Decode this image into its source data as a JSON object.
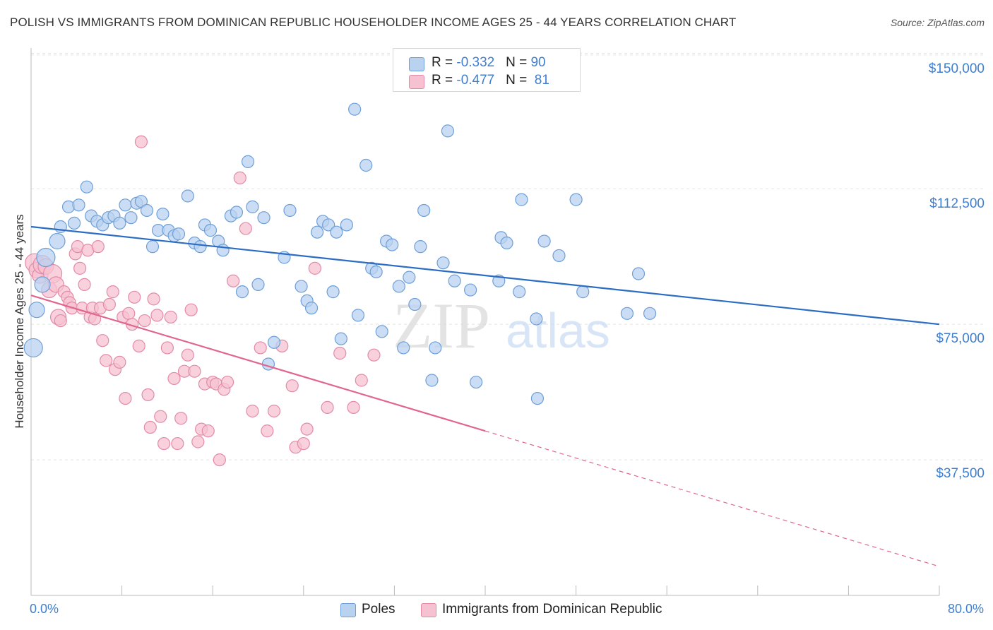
{
  "header": {
    "title": "POLISH VS IMMIGRANTS FROM DOMINICAN REPUBLIC HOUSEHOLDER INCOME AGES 25 - 44 YEARS CORRELATION CHART",
    "source": "Source: ZipAtlas.com"
  },
  "watermark": "ZIPatlas",
  "legend_top": {
    "rows": [
      {
        "r_label": "R = ",
        "r_value": "-0.332",
        "n_label": "N = ",
        "n_value": "90"
      },
      {
        "r_label": "R = ",
        "r_value": "-0.477",
        "n_label": "N = ",
        "n_value": " 81"
      }
    ]
  },
  "legend_bottom": [
    "Poles",
    "Immigrants from Dominican Republic"
  ],
  "colors": {
    "blue_fill": "#b8d2f0",
    "blue_stroke": "#6d9fd8",
    "blue_line": "#2b6cc4",
    "pink_fill": "#f6c2d2",
    "pink_stroke": "#e48aa8",
    "pink_line": "#e0668f",
    "axis_text": "#3f7fd0",
    "grid": "#e4e4e4"
  },
  "chart_data": {
    "type": "scatter",
    "title": "POLISH VS IMMIGRANTS FROM DOMINICAN REPUBLIC HOUSEHOLDER INCOME AGES 25 - 44 YEARS CORRELATION CHART",
    "xlabel": "",
    "ylabel": "Householder Income Ages 25 - 44 years",
    "xlim": [
      0,
      80
    ],
    "ylim": [
      0,
      153000
    ],
    "x_tick_labels": [
      "0.0%",
      "80.0%"
    ],
    "y_ticks": [
      37500,
      75000,
      112500,
      150000
    ],
    "y_tick_labels": [
      "$37,500",
      "$75,000",
      "$112,500",
      "$150,000"
    ],
    "grid": true,
    "series": [
      {
        "name": "Poles",
        "R": -0.332,
        "N": 90,
        "trend": {
          "x0": 0,
          "y0": 102000,
          "x1": 80,
          "y1": 75000
        },
        "points": [
          [
            0.2,
            68500
          ],
          [
            0.5,
            79000
          ],
          [
            1.0,
            86000
          ],
          [
            1.3,
            93500
          ],
          [
            2.3,
            98000
          ],
          [
            2.6,
            102000
          ],
          [
            3.3,
            107500
          ],
          [
            3.8,
            103000
          ],
          [
            4.2,
            108000
          ],
          [
            4.9,
            113000
          ],
          [
            5.3,
            105000
          ],
          [
            5.8,
            103500
          ],
          [
            6.3,
            102500
          ],
          [
            6.8,
            104500
          ],
          [
            7.3,
            105000
          ],
          [
            7.8,
            103000
          ],
          [
            8.3,
            108000
          ],
          [
            8.8,
            104500
          ],
          [
            9.3,
            108500
          ],
          [
            9.7,
            109000
          ],
          [
            10.2,
            106500
          ],
          [
            10.7,
            96500
          ],
          [
            11.2,
            101000
          ],
          [
            11.6,
            105500
          ],
          [
            12.1,
            101000
          ],
          [
            12.6,
            99500
          ],
          [
            13.0,
            100000
          ],
          [
            13.8,
            110500
          ],
          [
            14.4,
            97500
          ],
          [
            14.9,
            96500
          ],
          [
            15.3,
            102500
          ],
          [
            15.8,
            101000
          ],
          [
            16.5,
            98000
          ],
          [
            16.9,
            95500
          ],
          [
            17.6,
            105000
          ],
          [
            18.1,
            106000
          ],
          [
            18.6,
            84000
          ],
          [
            19.1,
            120000
          ],
          [
            19.5,
            107500
          ],
          [
            20.0,
            86000
          ],
          [
            20.5,
            104500
          ],
          [
            21.4,
            70000
          ],
          [
            20.9,
            64000
          ],
          [
            22.3,
            93500
          ],
          [
            22.8,
            106500
          ],
          [
            23.8,
            85500
          ],
          [
            24.3,
            81500
          ],
          [
            24.7,
            79500
          ],
          [
            25.2,
            100500
          ],
          [
            25.7,
            103500
          ],
          [
            26.2,
            102500
          ],
          [
            26.6,
            84000
          ],
          [
            26.9,
            100500
          ],
          [
            27.3,
            71000
          ],
          [
            27.8,
            102500
          ],
          [
            28.5,
            134500
          ],
          [
            28.8,
            77500
          ],
          [
            29.5,
            119000
          ],
          [
            30.0,
            90500
          ],
          [
            30.4,
            89500
          ],
          [
            30.9,
            73000
          ],
          [
            31.3,
            98000
          ],
          [
            31.8,
            97000
          ],
          [
            32.4,
            85500
          ],
          [
            32.8,
            68500
          ],
          [
            33.3,
            88000
          ],
          [
            33.8,
            80500
          ],
          [
            34.3,
            96500
          ],
          [
            34.6,
            106500
          ],
          [
            35.3,
            59500
          ],
          [
            35.6,
            68500
          ],
          [
            36.3,
            92000
          ],
          [
            36.7,
            128500
          ],
          [
            37.3,
            87000
          ],
          [
            38.7,
            84500
          ],
          [
            39.2,
            59000
          ],
          [
            41.4,
            99000
          ],
          [
            41.2,
            87000
          ],
          [
            41.9,
            97500
          ],
          [
            43.0,
            84000
          ],
          [
            43.2,
            109500
          ],
          [
            44.5,
            76500
          ],
          [
            44.6,
            54500
          ],
          [
            45.2,
            98000
          ],
          [
            46.5,
            94000
          ],
          [
            48.0,
            109500
          ],
          [
            48.6,
            84000
          ],
          [
            52.5,
            78000
          ],
          [
            53.5,
            89000
          ],
          [
            54.5,
            78000
          ]
        ]
      },
      {
        "name": "Immigrants from Dominican Republic",
        "R": -0.477,
        "N": 81,
        "trend": {
          "x0": 0,
          "y0": 83000,
          "x1": 80,
          "y1": 8000,
          "solid_until_x": 40
        },
        "points": [
          [
            0.3,
            92000
          ],
          [
            0.5,
            90000
          ],
          [
            0.8,
            88500
          ],
          [
            1.0,
            91500
          ],
          [
            1.3,
            91000
          ],
          [
            1.6,
            84500
          ],
          [
            1.9,
            89000
          ],
          [
            2.2,
            86000
          ],
          [
            2.4,
            77000
          ],
          [
            2.6,
            76000
          ],
          [
            2.9,
            84000
          ],
          [
            3.2,
            82500
          ],
          [
            3.4,
            81000
          ],
          [
            3.6,
            79500
          ],
          [
            3.9,
            94500
          ],
          [
            4.1,
            96500
          ],
          [
            4.3,
            90500
          ],
          [
            4.5,
            79500
          ],
          [
            4.7,
            86000
          ],
          [
            5.0,
            95500
          ],
          [
            5.2,
            77000
          ],
          [
            5.4,
            79500
          ],
          [
            5.6,
            76500
          ],
          [
            5.9,
            96500
          ],
          [
            6.1,
            79500
          ],
          [
            6.3,
            70500
          ],
          [
            6.6,
            65000
          ],
          [
            6.9,
            80500
          ],
          [
            7.2,
            84000
          ],
          [
            7.4,
            62500
          ],
          [
            7.8,
            64500
          ],
          [
            8.1,
            77000
          ],
          [
            8.3,
            54500
          ],
          [
            8.6,
            78000
          ],
          [
            8.9,
            75000
          ],
          [
            9.1,
            82500
          ],
          [
            9.5,
            69000
          ],
          [
            9.7,
            125500
          ],
          [
            10.0,
            76000
          ],
          [
            10.3,
            55500
          ],
          [
            10.5,
            46500
          ],
          [
            10.8,
            82000
          ],
          [
            11.1,
            77500
          ],
          [
            11.4,
            49500
          ],
          [
            11.7,
            42000
          ],
          [
            12.0,
            68500
          ],
          [
            12.3,
            77000
          ],
          [
            12.6,
            60000
          ],
          [
            12.9,
            42000
          ],
          [
            13.2,
            49000
          ],
          [
            13.5,
            62000
          ],
          [
            13.8,
            66500
          ],
          [
            14.1,
            79000
          ],
          [
            14.4,
            62000
          ],
          [
            14.7,
            42500
          ],
          [
            15.0,
            46000
          ],
          [
            15.3,
            58500
          ],
          [
            15.6,
            45500
          ],
          [
            16.0,
            59000
          ],
          [
            16.3,
            58500
          ],
          [
            16.6,
            37500
          ],
          [
            17.0,
            57000
          ],
          [
            17.3,
            59000
          ],
          [
            17.8,
            87000
          ],
          [
            18.4,
            115500
          ],
          [
            18.9,
            101500
          ],
          [
            19.5,
            51000
          ],
          [
            20.2,
            68500
          ],
          [
            20.8,
            45500
          ],
          [
            21.4,
            51000
          ],
          [
            22.1,
            69000
          ],
          [
            23.0,
            58000
          ],
          [
            23.3,
            41000
          ],
          [
            24.0,
            42000
          ],
          [
            24.3,
            46000
          ],
          [
            25.0,
            90500
          ],
          [
            26.1,
            52000
          ],
          [
            27.2,
            67000
          ],
          [
            28.4,
            52000
          ],
          [
            29.1,
            59500
          ],
          [
            30.2,
            66500
          ]
        ]
      }
    ]
  }
}
